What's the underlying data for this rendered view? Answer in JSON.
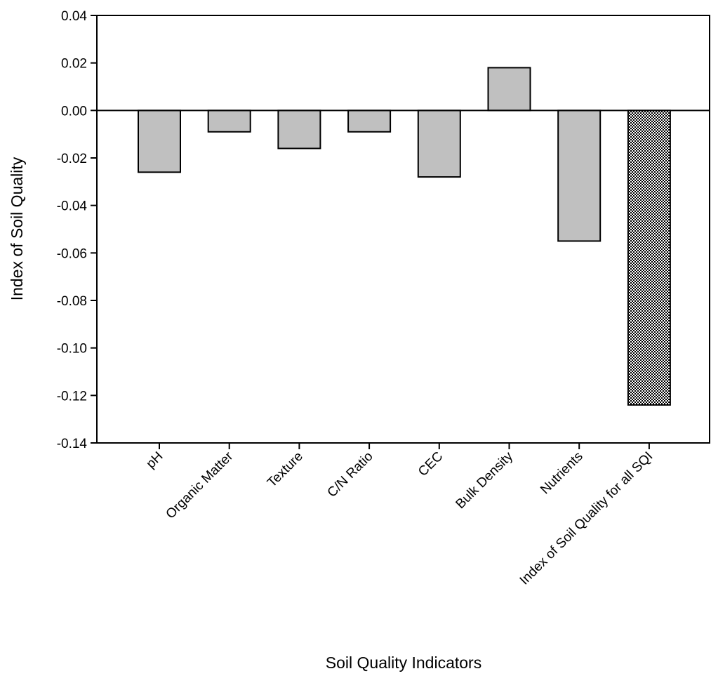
{
  "chart_data": {
    "type": "bar",
    "title": "",
    "xlabel": "Soil Quality Indicators",
    "ylabel": "Index of Soil Quality",
    "ylim": [
      -0.14,
      0.04
    ],
    "yticks": [
      "0.04",
      "0.02",
      "0.00",
      "-0.02",
      "-0.04",
      "-0.06",
      "-0.08",
      "-0.10",
      "-0.12",
      "-0.14"
    ],
    "categories": [
      "pH",
      "Organic Matter",
      "Texture",
      "C/N Ratio",
      "CEC",
      "Bulk Density",
      "Nutrients",
      "Index of Soil Quality for all SQI"
    ],
    "values": [
      -0.026,
      -0.009,
      -0.016,
      -0.009,
      -0.028,
      0.018,
      -0.055,
      -0.124
    ],
    "bar_styles": [
      "solid",
      "solid",
      "solid",
      "solid",
      "solid",
      "solid",
      "solid",
      "crosshatch"
    ],
    "grid": false,
    "legend": "none",
    "colors": {
      "bar_fill": "#c0c0c0",
      "bar_stroke": "#000000",
      "pattern_dark": "#000000",
      "pattern_light": "#ffffff"
    }
  }
}
